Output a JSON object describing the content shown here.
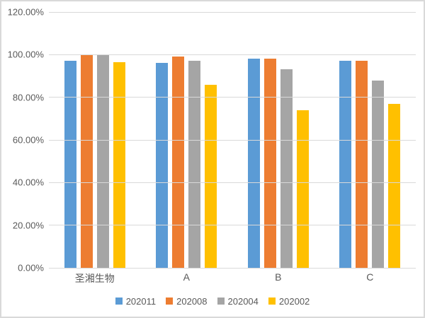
{
  "chart_data": {
    "type": "bar",
    "title": "",
    "xlabel": "",
    "ylabel": "",
    "categories": [
      "圣湘生物",
      "A",
      "B",
      "C"
    ],
    "series": [
      {
        "name": "202011",
        "color": "#5B9BD5",
        "values": [
          97,
          96,
          98,
          97
        ]
      },
      {
        "name": "202008",
        "color": "#ED7D31",
        "values": [
          100,
          99,
          98,
          97
        ]
      },
      {
        "name": "202004",
        "color": "#A5A5A5",
        "values": [
          100,
          97,
          93,
          88
        ]
      },
      {
        "name": "202002",
        "color": "#FFC000",
        "values": [
          96.5,
          86,
          74,
          77
        ]
      }
    ],
    "ylim": [
      0,
      120
    ],
    "ytick_step": 20,
    "ytick_labels": [
      "0.00%",
      "20.00%",
      "40.00%",
      "60.00%",
      "80.00%",
      "100.00%",
      "120.00%"
    ],
    "grid": true,
    "legend_position": "bottom",
    "colors": {
      "text": "#595959",
      "gridline": "#D9D9D9",
      "frame_border": "#D9D9D9",
      "background": "#FFFFFF"
    }
  }
}
